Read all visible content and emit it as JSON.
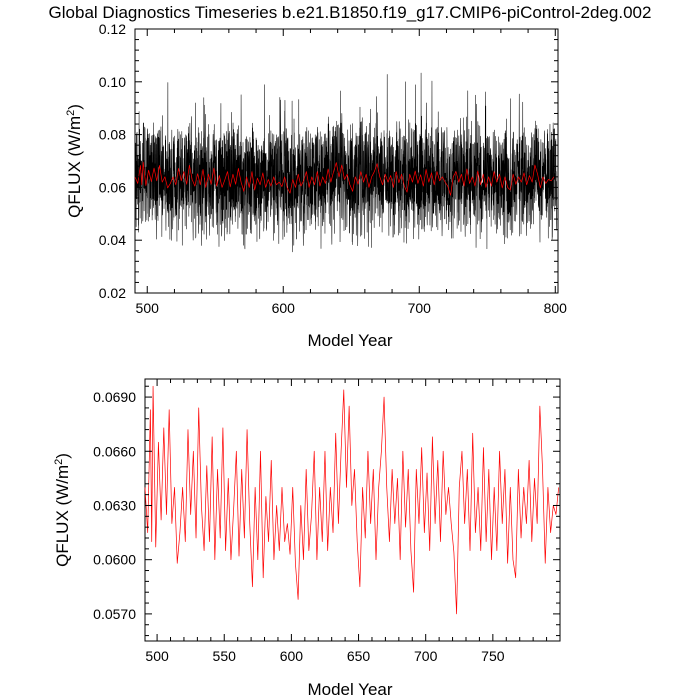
{
  "chart_data": [
    {
      "type": "line",
      "title": "Global Diagnostics Timeseries b.e21.B1850.f19_g17.CMIP6-piControl-2deg.002",
      "xlabel": "Model Year",
      "ylabel_main": "QFLUX (W/m",
      "ylabel_sup": "2",
      "ylabel_close": ")",
      "xlim": [
        491,
        802
      ],
      "ylim": [
        0.02,
        0.12
      ],
      "xticks": [
        500,
        600,
        700,
        800
      ],
      "yticks": [
        0.02,
        0.04,
        0.06,
        0.08,
        0.1,
        0.12
      ],
      "yticklabels": [
        "0.02",
        "0.04",
        "0.06",
        "0.08",
        "0.10",
        "0.12"
      ],
      "series": [
        {
          "name": "monthly",
          "color": "#000000",
          "kind": "monthly",
          "mean": 0.063,
          "min": 0.033,
          "max": 0.114,
          "x_start": 491,
          "x_end": 801
        },
        {
          "name": "annual mean",
          "color": "#ff0000",
          "kind": "annual",
          "source": "annual_values"
        }
      ]
    },
    {
      "type": "line",
      "title": "",
      "xlabel": "Model Year",
      "ylabel_main": "QFLUX (W/m",
      "ylabel_sup": "2",
      "ylabel_close": ")",
      "xlim": [
        491,
        800
      ],
      "ylim": [
        0.0555,
        0.07
      ],
      "xticks": [
        500,
        550,
        600,
        650,
        700,
        750
      ],
      "yticks": [
        0.057,
        0.06,
        0.063,
        0.066,
        0.069
      ],
      "yticklabels": [
        "0.0570",
        "0.0600",
        "0.0630",
        "0.0660",
        "0.0690"
      ],
      "series": [
        {
          "name": "annual mean",
          "color": "#ff0000",
          "kind": "annual",
          "source": "annual_values"
        }
      ]
    }
  ],
  "annual_values": {
    "start_year": 491,
    "keypoints": [
      [
        491,
        0.064
      ],
      [
        493,
        0.0615
      ],
      [
        495,
        0.0683
      ],
      [
        496,
        0.061
      ],
      [
        497,
        0.0696
      ],
      [
        499,
        0.0607
      ],
      [
        501,
        0.0665
      ],
      [
        503,
        0.0622
      ],
      [
        505,
        0.0673
      ],
      [
        507,
        0.0625
      ],
      [
        509,
        0.0683
      ],
      [
        511,
        0.062
      ],
      [
        513,
        0.064
      ],
      [
        515,
        0.0598
      ],
      [
        517,
        0.0615
      ],
      [
        519,
        0.064
      ],
      [
        521,
        0.061
      ],
      [
        523,
        0.0672
      ],
      [
        525,
        0.0625
      ],
      [
        527,
        0.066
      ],
      [
        529,
        0.0612
      ],
      [
        531,
        0.0684
      ],
      [
        533,
        0.063
      ],
      [
        535,
        0.0605
      ],
      [
        537,
        0.0652
      ],
      [
        539,
        0.061
      ],
      [
        541,
        0.0668
      ],
      [
        543,
        0.06
      ],
      [
        545,
        0.065
      ],
      [
        547,
        0.0612
      ],
      [
        549,
        0.0673
      ],
      [
        551,
        0.0605
      ],
      [
        553,
        0.0645
      ],
      [
        555,
        0.06
      ],
      [
        557,
        0.0628
      ],
      [
        559,
        0.066
      ],
      [
        561,
        0.0602
      ],
      [
        563,
        0.065
      ],
      [
        565,
        0.0612
      ],
      [
        567,
        0.0672
      ],
      [
        569,
        0.062
      ],
      [
        571,
        0.0585
      ],
      [
        573,
        0.064
      ],
      [
        575,
        0.06
      ],
      [
        577,
        0.066
      ],
      [
        579,
        0.059
      ],
      [
        581,
        0.0635
      ],
      [
        583,
        0.061
      ],
      [
        585,
        0.0655
      ],
      [
        587,
        0.06
      ],
      [
        589,
        0.063
      ],
      [
        591,
        0.0605
      ],
      [
        593,
        0.064
      ],
      [
        595,
        0.061
      ],
      [
        597,
        0.062
      ],
      [
        599,
        0.0603
      ],
      [
        601,
        0.064
      ],
      [
        603,
        0.0598
      ],
      [
        605,
        0.0578
      ],
      [
        607,
        0.063
      ],
      [
        609,
        0.06
      ],
      [
        611,
        0.065
      ],
      [
        613,
        0.0605
      ],
      [
        615,
        0.0625
      ],
      [
        617,
        0.066
      ],
      [
        619,
        0.06
      ],
      [
        621,
        0.064
      ],
      [
        623,
        0.061
      ],
      [
        625,
        0.066
      ],
      [
        627,
        0.0605
      ],
      [
        629,
        0.064
      ],
      [
        631,
        0.0615
      ],
      [
        633,
        0.067
      ],
      [
        635,
        0.062
      ],
      [
        637,
        0.066
      ],
      [
        639,
        0.0694
      ],
      [
        641,
        0.064
      ],
      [
        643,
        0.0685
      ],
      [
        645,
        0.063
      ],
      [
        647,
        0.065
      ],
      [
        649,
        0.061
      ],
      [
        651,
        0.0585
      ],
      [
        653,
        0.064
      ],
      [
        655,
        0.0612
      ],
      [
        657,
        0.066
      ],
      [
        659,
        0.062
      ],
      [
        661,
        0.065
      ],
      [
        663,
        0.06
      ],
      [
        665,
        0.064
      ],
      [
        667,
        0.066
      ],
      [
        669,
        0.069
      ],
      [
        671,
        0.064
      ],
      [
        673,
        0.061
      ],
      [
        675,
        0.065
      ],
      [
        677,
        0.062
      ],
      [
        679,
        0.0645
      ],
      [
        681,
        0.06
      ],
      [
        683,
        0.066
      ],
      [
        685,
        0.0618
      ],
      [
        687,
        0.065
      ],
      [
        689,
        0.0605
      ],
      [
        691,
        0.0582
      ],
      [
        693,
        0.065
      ],
      [
        695,
        0.062
      ],
      [
        697,
        0.0662
      ],
      [
        699,
        0.0615
      ],
      [
        701,
        0.0648
      ],
      [
        703,
        0.0605
      ],
      [
        705,
        0.0668
      ],
      [
        707,
        0.062
      ],
      [
        709,
        0.0655
      ],
      [
        711,
        0.061
      ],
      [
        713,
        0.066
      ],
      [
        715,
        0.0625
      ],
      [
        717,
        0.064
      ],
      [
        719,
        0.062
      ],
      [
        721,
        0.0604
      ],
      [
        723,
        0.057
      ],
      [
        725,
        0.064
      ],
      [
        727,
        0.066
      ],
      [
        729,
        0.062
      ],
      [
        731,
        0.065
      ],
      [
        733,
        0.0605
      ],
      [
        735,
        0.067
      ],
      [
        737,
        0.0615
      ],
      [
        739,
        0.064
      ],
      [
        741,
        0.0605
      ],
      [
        743,
        0.0662
      ],
      [
        745,
        0.061
      ],
      [
        747,
        0.065
      ],
      [
        749,
        0.06
      ],
      [
        751,
        0.064
      ],
      [
        753,
        0.0605
      ],
      [
        755,
        0.066
      ],
      [
        757,
        0.062
      ],
      [
        759,
        0.065
      ],
      [
        761,
        0.0598
      ],
      [
        763,
        0.064
      ],
      [
        765,
        0.06
      ],
      [
        767,
        0.059
      ],
      [
        769,
        0.065
      ],
      [
        771,
        0.0612
      ],
      [
        773,
        0.064
      ],
      [
        775,
        0.062
      ],
      [
        777,
        0.0655
      ],
      [
        779,
        0.061
      ],
      [
        781,
        0.0645
      ],
      [
        783,
        0.062
      ],
      [
        785,
        0.0685
      ],
      [
        787,
        0.065
      ],
      [
        789,
        0.0598
      ],
      [
        791,
        0.064
      ],
      [
        793,
        0.0615
      ],
      [
        795,
        0.063
      ],
      [
        797,
        0.0625
      ],
      [
        799,
        0.064
      ]
    ]
  }
}
